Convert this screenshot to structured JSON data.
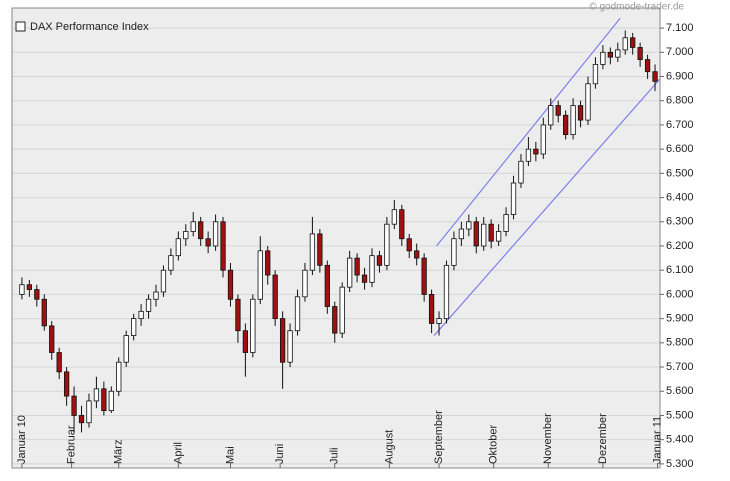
{
  "chart_data": {
    "type": "candlestick",
    "source": "© godmode-trader.de",
    "series": [
      {
        "name": "DAX Performance Index",
        "x": [
          0,
          3,
          6,
          9,
          12,
          15,
          18,
          21,
          24,
          27,
          30,
          33,
          36,
          39,
          42,
          45,
          48,
          51,
          54,
          57,
          60,
          63,
          66,
          69,
          72,
          75,
          78,
          81,
          84,
          87,
          90,
          93,
          96,
          99,
          102,
          105,
          108,
          111,
          114,
          117,
          120,
          123,
          126,
          129,
          132,
          135,
          138,
          141,
          144,
          147,
          150,
          153,
          156,
          159,
          162,
          165,
          168,
          171,
          174,
          177,
          180,
          183,
          186,
          189,
          192,
          195,
          198,
          201,
          204,
          207,
          210,
          213,
          216,
          219,
          222,
          225,
          228,
          231,
          234,
          237,
          240,
          243,
          246,
          249,
          252,
          255
        ],
        "open": [
          6000,
          6040,
          6020,
          5980,
          5870,
          5760,
          5680,
          5580,
          5500,
          5470,
          5560,
          5610,
          5520,
          5600,
          5720,
          5830,
          5900,
          5930,
          5980,
          6010,
          6100,
          6160,
          6230,
          6260,
          6300,
          6230,
          6200,
          6300,
          6100,
          5980,
          5850,
          5760,
          5980,
          6180,
          6080,
          5900,
          5720,
          5850,
          5990,
          6100,
          6250,
          6120,
          5950,
          5840,
          6030,
          6150,
          6080,
          6050,
          6160,
          6120,
          6290,
          6350,
          6230,
          6180,
          6150,
          6000,
          5880,
          5900,
          6120,
          6230,
          6270,
          6300,
          6200,
          6290,
          6220,
          6260,
          6330,
          6460,
          6550,
          6600,
          6580,
          6700,
          6780,
          6740,
          6660,
          6780,
          6720,
          6870,
          6950,
          7000,
          6980,
          7010,
          7060,
          7020,
          6970,
          6920
        ],
        "high": [
          6070,
          6060,
          6040,
          6000,
          5890,
          5780,
          5700,
          5620,
          5540,
          5590,
          5660,
          5640,
          5620,
          5740,
          5850,
          5920,
          5960,
          6000,
          6040,
          6120,
          6190,
          6260,
          6290,
          6340,
          6320,
          6260,
          6330,
          6320,
          6130,
          6000,
          5880,
          6000,
          6240,
          6200,
          6100,
          5930,
          5880,
          6020,
          6130,
          6320,
          6270,
          6140,
          5970,
          6050,
          6180,
          6170,
          6110,
          6190,
          6180,
          6320,
          6390,
          6370,
          6250,
          6210,
          6170,
          6020,
          5930,
          6140,
          6260,
          6300,
          6330,
          6320,
          6320,
          6310,
          6290,
          6360,
          6490,
          6580,
          6650,
          6630,
          6730,
          6810,
          6800,
          6760,
          6810,
          6800,
          6900,
          6980,
          7030,
          7020,
          7040,
          7090,
          7080,
          7040,
          6990,
          6950
        ],
        "low": [
          5980,
          5990,
          5950,
          5850,
          5730,
          5650,
          5540,
          5430,
          5430,
          5450,
          5530,
          5500,
          5510,
          5580,
          5700,
          5810,
          5870,
          5900,
          5950,
          5990,
          6080,
          6140,
          6200,
          6240,
          6200,
          6170,
          6180,
          6070,
          5950,
          5800,
          5660,
          5740,
          5960,
          6040,
          5870,
          5610,
          5700,
          5830,
          5970,
          6080,
          6090,
          5920,
          5800,
          5820,
          6010,
          6050,
          6020,
          6030,
          6090,
          6100,
          6270,
          6200,
          6150,
          6120,
          5970,
          5840,
          5830,
          5880,
          6100,
          6200,
          6240,
          6170,
          6180,
          6190,
          6200,
          6240,
          6310,
          6440,
          6530,
          6550,
          6560,
          6680,
          6710,
          6640,
          6640,
          6690,
          6700,
          6850,
          6930,
          6950,
          6960,
          6990,
          6990,
          6940,
          6890,
          6840
        ],
        "close": [
          6040,
          6020,
          5980,
          5870,
          5760,
          5680,
          5580,
          5500,
          5470,
          5560,
          5610,
          5520,
          5600,
          5720,
          5830,
          5900,
          5930,
          5980,
          6010,
          6100,
          6160,
          6230,
          6260,
          6300,
          6230,
          6200,
          6300,
          6100,
          5980,
          5850,
          5760,
          5980,
          6180,
          6080,
          5900,
          5720,
          5850,
          5990,
          6100,
          6250,
          6120,
          5950,
          5840,
          6030,
          6150,
          6080,
          6050,
          6160,
          6120,
          6290,
          6350,
          6230,
          6180,
          6150,
          6000,
          5880,
          5900,
          6120,
          6230,
          6270,
          6300,
          6200,
          6290,
          6220,
          6260,
          6330,
          6460,
          6550,
          6600,
          6580,
          6700,
          6780,
          6740,
          6660,
          6780,
          6720,
          6870,
          6950,
          7000,
          6980,
          7010,
          7060,
          7020,
          6970,
          6920,
          6880
        ],
        "up_color": "#ffffff",
        "down_color": "#a01010"
      }
    ],
    "trendlines": [
      {
        "x": [
          167,
          241
        ],
        "y": [
          6200,
          7141
        ]
      },
      {
        "x": [
          166,
          269
        ],
        "y": [
          5830,
          7030
        ]
      }
    ],
    "trendline_color": "#8080f0",
    "xlim": [
      -4,
      257
    ],
    "xticks": [
      {
        "value": 0,
        "label": "Januar 10"
      },
      {
        "value": 20,
        "label": "Februar"
      },
      {
        "value": 39,
        "label": "März"
      },
      {
        "value": 63,
        "label": "April"
      },
      {
        "value": 84,
        "label": "Mai"
      },
      {
        "value": 104,
        "label": "Juni"
      },
      {
        "value": 126,
        "label": "Juli"
      },
      {
        "value": 148,
        "label": "August"
      },
      {
        "value": 168,
        "label": "September"
      },
      {
        "value": 190,
        "label": "Oktober"
      },
      {
        "value": 212,
        "label": "November"
      },
      {
        "value": 234,
        "label": "Dezember"
      },
      {
        "value": 256,
        "label": "Januar 11"
      }
    ],
    "ylim": [
      5283,
      7183
    ],
    "yticks": [
      {
        "value": 5300,
        "label": "5.300"
      },
      {
        "value": 5400,
        "label": "5.400"
      },
      {
        "value": 5500,
        "label": "5.500"
      },
      {
        "value": 5600,
        "label": "5.600"
      },
      {
        "value": 5700,
        "label": "5.700"
      },
      {
        "value": 5800,
        "label": "5.800"
      },
      {
        "value": 5900,
        "label": "5.900"
      },
      {
        "value": 6000,
        "label": "6.000"
      },
      {
        "value": 6100,
        "label": "6.100"
      },
      {
        "value": 6200,
        "label": "6.200"
      },
      {
        "value": 6300,
        "label": "6.300"
      },
      {
        "value": 6400,
        "label": "6.400"
      },
      {
        "value": 6500,
        "label": "6.500"
      },
      {
        "value": 6600,
        "label": "6.600"
      },
      {
        "value": 6700,
        "label": "6.700"
      },
      {
        "value": 6800,
        "label": "6.800"
      },
      {
        "value": 6900,
        "label": "6.900"
      },
      {
        "value": 7000,
        "label": "7.000"
      },
      {
        "value": 7100,
        "label": "7.100"
      }
    ],
    "grid": true
  }
}
